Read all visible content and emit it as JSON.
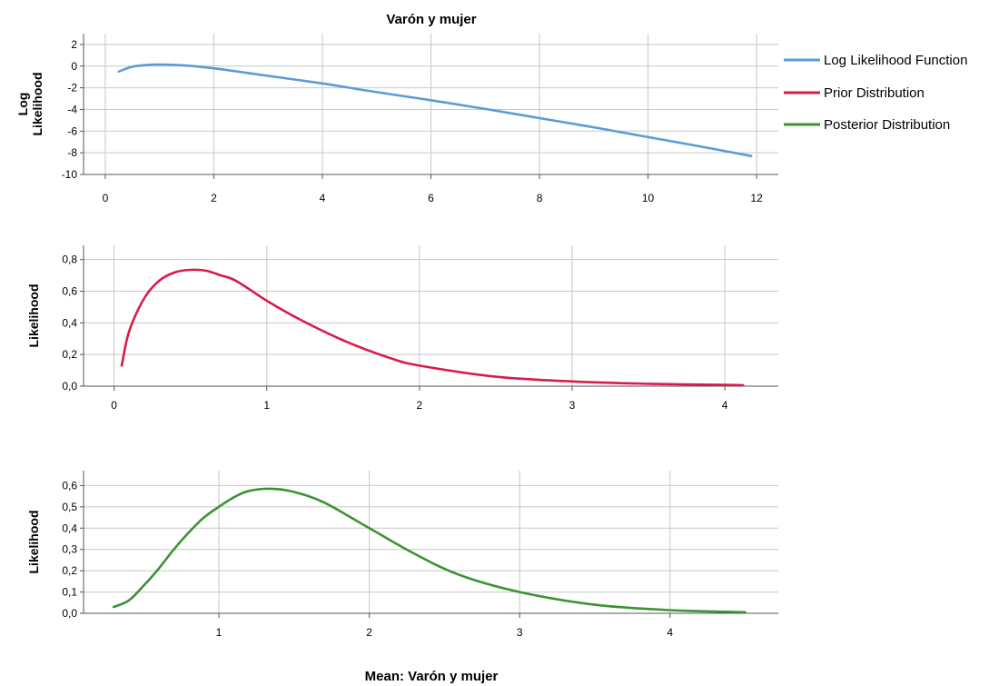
{
  "title": "Varón y mujer",
  "xlabel": "Mean: Varón y mujer",
  "legend": [
    {
      "label": "Log Likelihood Function",
      "color": "#5b9bd5"
    },
    {
      "label": "Prior Distribution",
      "color": "#d81b4c"
    },
    {
      "label": "Posterior Distribution",
      "color": "#3c9233"
    }
  ],
  "chart_data": [
    {
      "type": "line",
      "series_label": "Log Likelihood Function",
      "ylabel_lines": [
        "Log",
        "Likelihood"
      ],
      "color": "#5b9bd5",
      "xlim": [
        -0.4,
        12.4
      ],
      "ylim": [
        -10,
        3
      ],
      "xticks": [
        0,
        2,
        4,
        6,
        8,
        10,
        12
      ],
      "xtick_labels": [
        "0",
        "2",
        "4",
        "6",
        "8",
        "10",
        "12"
      ],
      "yticks": [
        2,
        0,
        -2,
        -4,
        -6,
        -8,
        -10
      ],
      "ytick_labels": [
        "2",
        "0",
        "-2",
        "-4",
        "-6",
        "-8",
        "-10"
      ],
      "x": [
        0.25,
        0.5,
        0.75,
        1.0,
        1.5,
        2.0,
        2.5,
        3.0,
        4.0,
        5.0,
        6.0,
        7.0,
        8.0,
        9.0,
        10.0,
        11.0,
        11.9
      ],
      "y": [
        -0.5,
        -0.05,
        0.1,
        0.15,
        0.05,
        -0.2,
        -0.55,
        -0.9,
        -1.6,
        -2.4,
        -3.15,
        -3.95,
        -4.8,
        -5.65,
        -6.55,
        -7.45,
        -8.3
      ]
    },
    {
      "type": "line",
      "series_label": "Prior Distribution",
      "ylabel_lines": [
        "Likelihood"
      ],
      "color": "#d81b4c",
      "xlim": [
        -0.2,
        4.35
      ],
      "ylim": [
        0,
        0.89
      ],
      "xticks": [
        0,
        1,
        2,
        3,
        4
      ],
      "xtick_labels": [
        "0",
        "1",
        "2",
        "3",
        "4"
      ],
      "yticks": [
        0.8,
        0.6,
        0.4,
        0.2,
        0.0
      ],
      "ytick_labels": [
        "0,8",
        "0,6",
        "0,4",
        "0,2",
        "0,0"
      ],
      "x": [
        0.05,
        0.1,
        0.2,
        0.3,
        0.4,
        0.5,
        0.6,
        0.7,
        0.8,
        1.0,
        1.2,
        1.5,
        1.8,
        2.0,
        2.5,
        3.0,
        3.5,
        4.0,
        4.12
      ],
      "y": [
        0.13,
        0.35,
        0.56,
        0.67,
        0.72,
        0.735,
        0.73,
        0.7,
        0.665,
        0.54,
        0.43,
        0.29,
        0.18,
        0.13,
        0.06,
        0.03,
        0.015,
        0.008,
        0.006
      ]
    },
    {
      "type": "line",
      "series_label": "Posterior Distribution",
      "ylabel_lines": [
        "Likelihood"
      ],
      "color": "#3c9233",
      "xlim": [
        0.1,
        4.72
      ],
      "ylim": [
        0,
        0.67
      ],
      "xticks": [
        1,
        2,
        3,
        4
      ],
      "xtick_labels": [
        "1",
        "2",
        "3",
        "4"
      ],
      "yticks": [
        0.6,
        0.5,
        0.4,
        0.3,
        0.2,
        0.1,
        0.0
      ],
      "ytick_labels": [
        "0,6",
        "0,5",
        "0,4",
        "0,3",
        "0,2",
        "0,1",
        "0,0"
      ],
      "x": [
        0.3,
        0.4,
        0.5,
        0.6,
        0.7,
        0.8,
        0.9,
        1.0,
        1.1,
        1.2,
        1.35,
        1.5,
        1.7,
        2.0,
        2.3,
        2.6,
        3.0,
        3.5,
        4.0,
        4.5
      ],
      "y": [
        0.03,
        0.06,
        0.13,
        0.21,
        0.3,
        0.38,
        0.45,
        0.5,
        0.545,
        0.575,
        0.585,
        0.57,
        0.52,
        0.4,
        0.28,
        0.18,
        0.1,
        0.04,
        0.015,
        0.005
      ]
    }
  ]
}
